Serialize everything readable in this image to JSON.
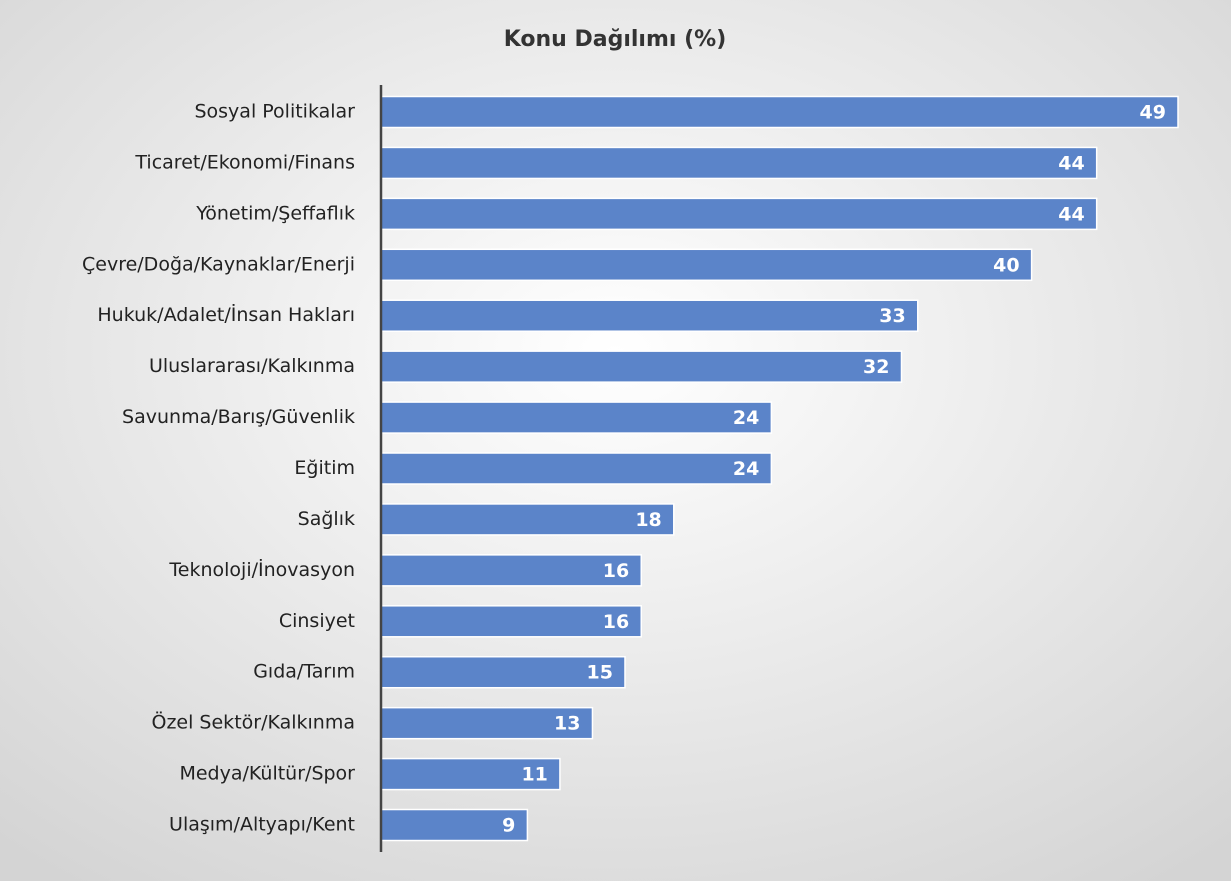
{
  "chart_data": {
    "type": "bar",
    "orientation": "horizontal",
    "title": "Konu Dağılımı (%)",
    "categories": [
      "Sosyal Politikalar",
      "Ticaret/Ekonomi/Finans",
      "Yönetim/Şeffaflık",
      "Çevre/Doğa/Kaynaklar/Enerji",
      "Hukuk/Adalet/İnsan Hakları",
      "Uluslararası/Kalkınma",
      "Savunma/Barış/Güvenlik",
      "Eğitim",
      "Sağlık",
      "Teknoloji/İnovasyon",
      "Cinsiyet",
      "Gıda/Tarım",
      "Özel Sektör/Kalkınma",
      "Medya/Kültür/Spor",
      "Ulaşım/Altyapı/Kent"
    ],
    "values": [
      49,
      44,
      44,
      40,
      33,
      32,
      24,
      24,
      18,
      16,
      16,
      15,
      13,
      11,
      9
    ],
    "color": "#5b84c9"
  }
}
